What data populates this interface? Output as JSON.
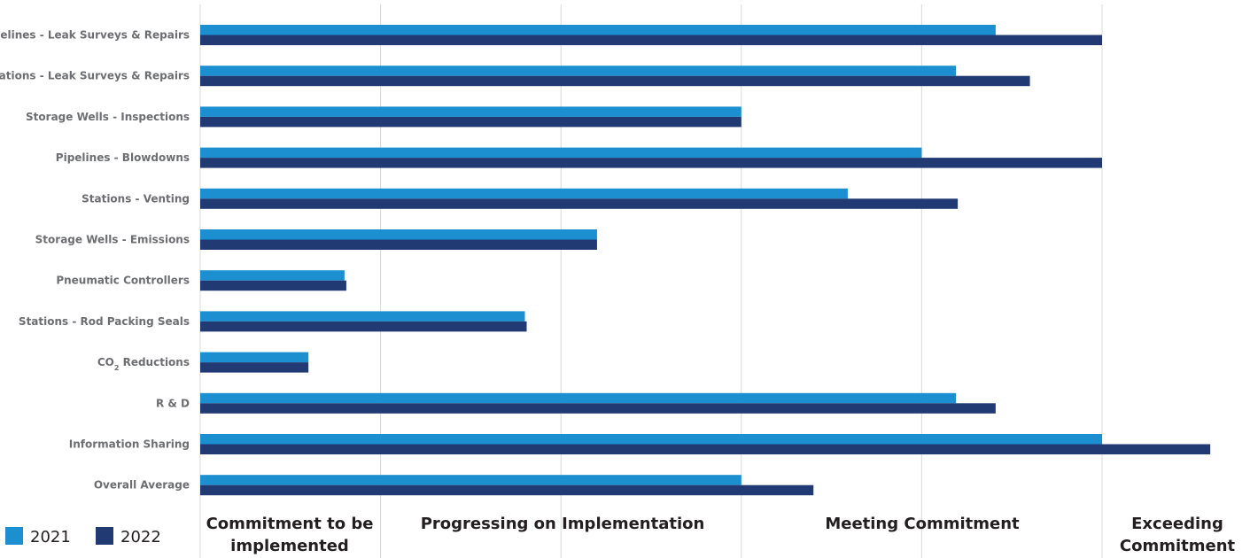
{
  "chart_data": {
    "type": "bar",
    "orientation": "horizontal",
    "categories": [
      "Pipelines - Leak Surveys & Repairs",
      "Stations - Leak Surveys & Repairs",
      "Storage Wells - Inspections",
      "Pipelines - Blowdowns",
      "Stations - Venting",
      "Storage Wells - Emissions",
      "Pneumatic Controllers",
      "Stations - Rod Packing Seals",
      "CO2 Reductions",
      "R & D",
      "Information Sharing",
      "Overall Average"
    ],
    "category_label_parts": {
      "8": [
        "CO",
        "2",
        " Reductions"
      ]
    },
    "series": [
      {
        "name": "2021",
        "color": "#1b8fd0",
        "values": [
          4.41,
          4.19,
          3.0,
          4.0,
          3.59,
          2.2,
          0.8,
          1.8,
          0.6,
          4.19,
          5.0,
          3.0
        ]
      },
      {
        "name": "2022",
        "color": "#213a73",
        "values": [
          5.0,
          4.6,
          3.0,
          5.0,
          4.2,
          2.2,
          0.81,
          1.81,
          0.6,
          4.41,
          5.6,
          3.4
        ]
      }
    ],
    "xlim": [
      0,
      5.6
    ],
    "gridlines": [
      0,
      1,
      2,
      3,
      4,
      5
    ],
    "bands": [
      {
        "lines": [
          "Commitment to be",
          "implemented"
        ],
        "range": [
          0,
          1
        ]
      },
      {
        "lines": [
          "Progressing on Implementation"
        ],
        "range": [
          1,
          3
        ]
      },
      {
        "lines": [
          "Meeting Commitment"
        ],
        "range": [
          3,
          5
        ]
      },
      {
        "lines": [
          "Exceeding",
          "Commitment"
        ],
        "range": [
          5,
          5.6
        ]
      }
    ],
    "legend_position": "bottom-left",
    "grid": true,
    "grid_color": "#d9d9d9"
  }
}
